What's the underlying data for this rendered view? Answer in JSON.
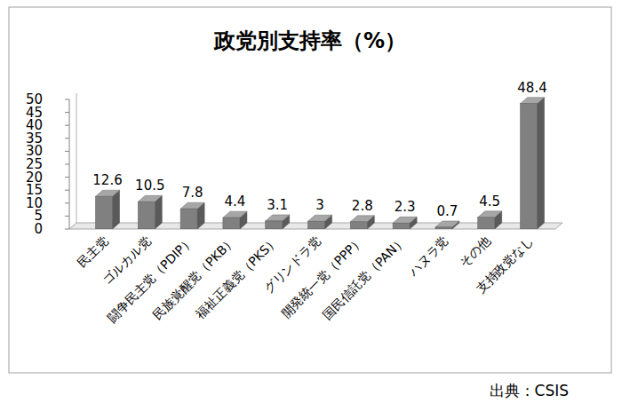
{
  "chart_data": {
    "type": "bar",
    "title": "政党別支持率（%）",
    "categories": [
      "民主党",
      "ゴルカル党",
      "闘争民主党（PDIP）",
      "民族覚醒党（PKB）",
      "福祉正義党（PKS）",
      "グリンドラ党",
      "開発統一党（PPP）",
      "国民信託党（PAN）",
      "ハヌラ党",
      "その他",
      "支持政党なし"
    ],
    "values": [
      12.6,
      10.5,
      7.8,
      4.4,
      3.1,
      3,
      2.8,
      2.3,
      0.7,
      4.5,
      48.4
    ],
    "color": "#808080",
    "ylim": [
      0,
      50
    ],
    "yticks": [
      0,
      5,
      10,
      15,
      20,
      25,
      30,
      35,
      40,
      45,
      50
    ],
    "grid": false,
    "data_labels": true,
    "source": "出典：CSIS"
  }
}
